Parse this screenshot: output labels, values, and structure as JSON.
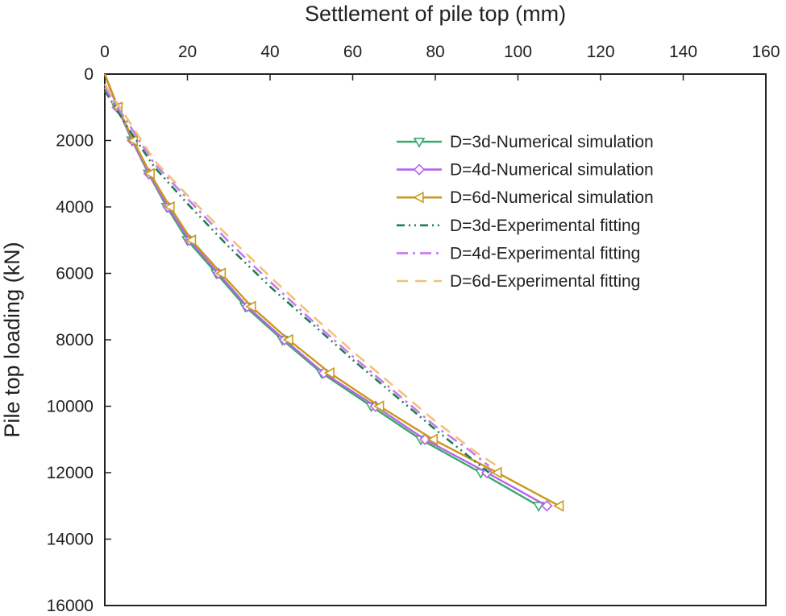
{
  "chart_data": {
    "type": "line",
    "title": "",
    "xlabel": "Settlement of pile top (mm)",
    "ylabel": "Pile top loading (kN)",
    "x_position": "top",
    "y_inverted": true,
    "xlim": [
      0,
      160
    ],
    "ylim": [
      0,
      16000
    ],
    "x_ticks": [
      0,
      20,
      40,
      60,
      80,
      100,
      120,
      140,
      160
    ],
    "y_ticks": [
      0,
      2000,
      4000,
      6000,
      8000,
      10000,
      12000,
      14000,
      16000
    ],
    "grid": false,
    "legend_position": "top-right",
    "series": [
      {
        "name": "D=3d-Numerical simulation",
        "color": "#3aa86b",
        "style": "solid",
        "marker": "triangle-down",
        "points": [
          [
            0,
            0
          ],
          [
            3,
            1000
          ],
          [
            6.6,
            2000
          ],
          [
            10.6,
            3000
          ],
          [
            15,
            4000
          ],
          [
            20,
            5000
          ],
          [
            27,
            6000
          ],
          [
            34,
            7000
          ],
          [
            43,
            8000
          ],
          [
            52.5,
            9000
          ],
          [
            64.5,
            10000
          ],
          [
            76.5,
            11000
          ],
          [
            91,
            12000
          ],
          [
            105,
            13000
          ]
        ]
      },
      {
        "name": "D=4d-Numerical simulation",
        "color": "#b565ea",
        "style": "solid",
        "marker": "diamond",
        "points": [
          [
            0,
            0
          ],
          [
            3,
            1000
          ],
          [
            6.7,
            2000
          ],
          [
            10.7,
            3000
          ],
          [
            15.3,
            4000
          ],
          [
            20.5,
            5000
          ],
          [
            27.5,
            6000
          ],
          [
            34.5,
            7000
          ],
          [
            43.5,
            8000
          ],
          [
            53,
            9000
          ],
          [
            65.5,
            10000
          ],
          [
            77.5,
            11000
          ],
          [
            92.5,
            12000
          ],
          [
            107,
            13000
          ]
        ]
      },
      {
        "name": "D=6d-Numerical simulation",
        "color": "#c89a1c",
        "style": "solid",
        "marker": "triangle-left",
        "points": [
          [
            0,
            0
          ],
          [
            3.2,
            1000
          ],
          [
            6.9,
            2000
          ],
          [
            11,
            3000
          ],
          [
            15.8,
            4000
          ],
          [
            21,
            5000
          ],
          [
            28.2,
            6000
          ],
          [
            35.5,
            7000
          ],
          [
            44.5,
            8000
          ],
          [
            54.5,
            9000
          ],
          [
            66.5,
            10000
          ],
          [
            79.5,
            11000
          ],
          [
            95,
            12000
          ],
          [
            110,
            13000
          ]
        ]
      },
      {
        "name": "D=3d-Experimental fitting",
        "color": "#1e7f4e",
        "style": "dash-dot-dot",
        "marker": "none",
        "points": [
          [
            0,
            500
          ],
          [
            2,
            900
          ],
          [
            6,
            1700
          ],
          [
            12,
            2800
          ],
          [
            20,
            3900
          ],
          [
            30,
            5200
          ],
          [
            40,
            6400
          ],
          [
            50,
            7500
          ],
          [
            60,
            8600
          ],
          [
            70,
            9650
          ],
          [
            80,
            10700
          ],
          [
            87,
            11400
          ],
          [
            93,
            12000
          ]
        ]
      },
      {
        "name": "D=4d-Experimental fitting",
        "color": "#c679f0",
        "style": "dash-dot",
        "marker": "none",
        "points": [
          [
            0,
            400
          ],
          [
            2,
            800
          ],
          [
            6,
            1550
          ],
          [
            12,
            2700
          ],
          [
            20,
            3750
          ],
          [
            30,
            5050
          ],
          [
            40,
            6250
          ],
          [
            50,
            7400
          ],
          [
            60,
            8500
          ],
          [
            70,
            9550
          ],
          [
            80,
            10600
          ],
          [
            88,
            11300
          ],
          [
            93,
            11800
          ]
        ]
      },
      {
        "name": "D=6d-Experimental fitting",
        "color": "#f0c27a",
        "style": "dashed",
        "marker": "none",
        "points": [
          [
            0,
            300
          ],
          [
            2,
            700
          ],
          [
            6,
            1450
          ],
          [
            12,
            2600
          ],
          [
            20,
            3650
          ],
          [
            30,
            4900
          ],
          [
            40,
            6100
          ],
          [
            50,
            7250
          ],
          [
            60,
            8350
          ],
          [
            70,
            9400
          ],
          [
            80,
            10450
          ],
          [
            90,
            11400
          ],
          [
            95,
            11800
          ]
        ]
      }
    ]
  }
}
